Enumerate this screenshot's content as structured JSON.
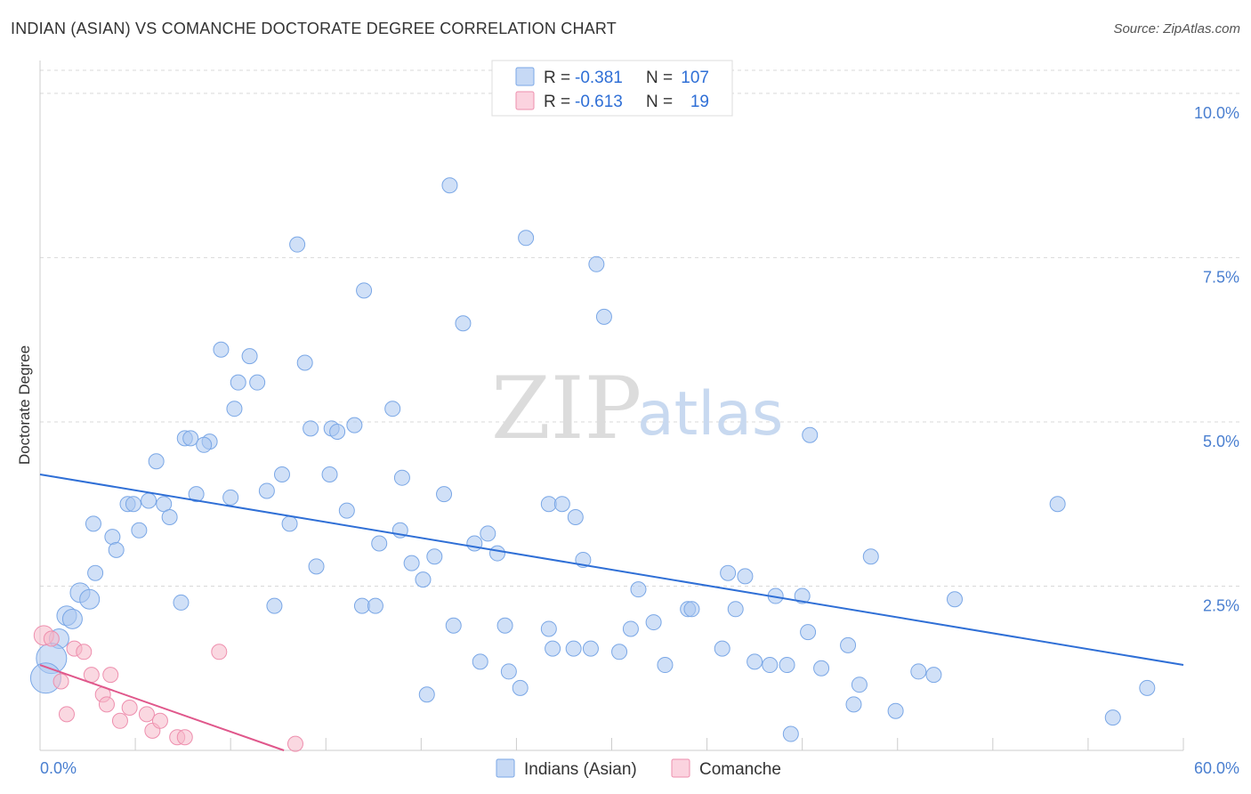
{
  "header": {
    "title": "INDIAN (ASIAN) VS COMANCHE DOCTORATE DEGREE CORRELATION CHART",
    "source": "Source: ZipAtlas.com"
  },
  "watermark": {
    "part1": "ZIP",
    "part2": "atlas"
  },
  "legend": {
    "rows": [
      {
        "r_label": "R =",
        "r_value": "-0.381",
        "n_label": "N =",
        "n_value": "107",
        "color": "#a9c6f0"
      },
      {
        "r_label": "R =",
        "r_value": "-0.613",
        "n_label": "N =",
        "n_value": "19",
        "color": "#f6b8c9"
      }
    ]
  },
  "bottom_legend": [
    {
      "label": "Indians (Asian)",
      "color": "#a9c6f0"
    },
    {
      "label": "Comanche",
      "color": "#f6b8c9"
    }
  ],
  "chart_data": {
    "type": "scatter",
    "title": "INDIAN (ASIAN) VS COMANCHE DOCTORATE DEGREE CORRELATION CHART",
    "xlabel": "",
    "ylabel": "Doctorate Degree",
    "xlim": [
      0,
      60
    ],
    "ylim": [
      0,
      10.5
    ],
    "x_tick_labels": [
      "0.0%",
      "60.0%"
    ],
    "y_ticks": [
      2.5,
      5.0,
      7.5,
      10.0
    ],
    "y_tick_labels": [
      "2.5%",
      "5.0%",
      "7.5%",
      "10.0%"
    ],
    "grid": true,
    "legend_position": "top-center",
    "series": [
      {
        "name": "Indians (Asian)",
        "color": "#7aa7e6",
        "fill": "#a9c6f0",
        "trend": {
          "x": [
            0,
            60
          ],
          "y": [
            4.2,
            1.3
          ],
          "color": "#2f6fd6"
        },
        "points": [
          [
            21.5,
            8.6
          ],
          [
            25.5,
            7.8
          ],
          [
            13.5,
            7.7
          ],
          [
            29.2,
            7.4
          ],
          [
            17.0,
            7.0
          ],
          [
            22.2,
            6.5
          ],
          [
            29.6,
            6.6
          ],
          [
            9.5,
            6.1
          ],
          [
            11.0,
            6.0
          ],
          [
            13.9,
            5.9
          ],
          [
            10.4,
            5.6
          ],
          [
            11.4,
            5.6
          ],
          [
            10.2,
            5.2
          ],
          [
            18.5,
            5.2
          ],
          [
            7.6,
            4.75
          ],
          [
            7.9,
            4.75
          ],
          [
            8.9,
            4.7
          ],
          [
            8.6,
            4.65
          ],
          [
            14.2,
            4.9
          ],
          [
            15.3,
            4.9
          ],
          [
            15.6,
            4.85
          ],
          [
            16.5,
            4.95
          ],
          [
            40.4,
            4.8
          ],
          [
            6.1,
            4.4
          ],
          [
            12.7,
            4.2
          ],
          [
            15.2,
            4.2
          ],
          [
            19.0,
            4.15
          ],
          [
            11.9,
            3.95
          ],
          [
            21.2,
            3.9
          ],
          [
            8.2,
            3.9
          ],
          [
            10.0,
            3.85
          ],
          [
            4.6,
            3.75
          ],
          [
            4.9,
            3.75
          ],
          [
            5.7,
            3.8
          ],
          [
            6.5,
            3.75
          ],
          [
            26.7,
            3.75
          ],
          [
            27.4,
            3.75
          ],
          [
            6.8,
            3.55
          ],
          [
            53.4,
            3.75
          ],
          [
            2.8,
            3.45
          ],
          [
            13.1,
            3.45
          ],
          [
            16.1,
            3.65
          ],
          [
            28.1,
            3.55
          ],
          [
            5.2,
            3.35
          ],
          [
            18.9,
            3.35
          ],
          [
            23.5,
            3.3
          ],
          [
            17.8,
            3.15
          ],
          [
            22.8,
            3.15
          ],
          [
            3.8,
            3.25
          ],
          [
            4.0,
            3.05
          ],
          [
            24.0,
            3.0
          ],
          [
            14.5,
            2.8
          ],
          [
            19.5,
            2.85
          ],
          [
            20.7,
            2.95
          ],
          [
            28.5,
            2.9
          ],
          [
            43.6,
            2.95
          ],
          [
            2.9,
            2.7
          ],
          [
            20.1,
            2.6
          ],
          [
            36.1,
            2.7
          ],
          [
            37.0,
            2.65
          ],
          [
            2.1,
            2.4
          ],
          [
            2.6,
            2.3
          ],
          [
            7.4,
            2.25
          ],
          [
            31.4,
            2.45
          ],
          [
            38.6,
            2.35
          ],
          [
            40.0,
            2.35
          ],
          [
            48.0,
            2.3
          ],
          [
            12.3,
            2.2
          ],
          [
            16.9,
            2.2
          ],
          [
            17.6,
            2.2
          ],
          [
            34.0,
            2.15
          ],
          [
            34.2,
            2.15
          ],
          [
            36.5,
            2.15
          ],
          [
            1.4,
            2.05
          ],
          [
            1.7,
            2.0
          ],
          [
            32.2,
            1.95
          ],
          [
            21.7,
            1.9
          ],
          [
            24.4,
            1.9
          ],
          [
            26.7,
            1.85
          ],
          [
            31.0,
            1.85
          ],
          [
            40.3,
            1.8
          ],
          [
            1.0,
            1.7
          ],
          [
            26.9,
            1.55
          ],
          [
            28.0,
            1.55
          ],
          [
            28.9,
            1.55
          ],
          [
            30.4,
            1.5
          ],
          [
            35.8,
            1.55
          ],
          [
            42.4,
            1.6
          ],
          [
            0.6,
            1.4
          ],
          [
            23.1,
            1.35
          ],
          [
            32.8,
            1.3
          ],
          [
            37.5,
            1.35
          ],
          [
            38.3,
            1.3
          ],
          [
            39.2,
            1.3
          ],
          [
            41.0,
            1.25
          ],
          [
            24.6,
            1.2
          ],
          [
            46.1,
            1.2
          ],
          [
            46.9,
            1.15
          ],
          [
            0.3,
            1.1
          ],
          [
            25.2,
            0.95
          ],
          [
            43.0,
            1.0
          ],
          [
            20.3,
            0.85
          ],
          [
            58.1,
            0.95
          ],
          [
            42.7,
            0.7
          ],
          [
            44.9,
            0.6
          ],
          [
            56.3,
            0.5
          ],
          [
            39.4,
            0.25
          ]
        ],
        "point_sizes": [
          "s",
          "s",
          "s",
          "s",
          "s",
          "s",
          "s",
          "s",
          "s",
          "s",
          "s",
          "s",
          "s",
          "s",
          "s",
          "s",
          "s",
          "s",
          "s",
          "s",
          "s",
          "s",
          "s",
          "s",
          "s",
          "s",
          "s",
          "s",
          "s",
          "s",
          "s",
          "s",
          "s",
          "s",
          "s",
          "s",
          "s",
          "s",
          "s",
          "s",
          "s",
          "s",
          "s",
          "s",
          "s",
          "s",
          "s",
          "s",
          "s",
          "s",
          "s",
          "s",
          "s",
          "s",
          "s",
          "s",
          "s",
          "s",
          "s",
          "s",
          "m",
          "m",
          "s",
          "s",
          "s",
          "s",
          "s",
          "s",
          "s",
          "s",
          "s",
          "s",
          "s",
          "m",
          "m",
          "s",
          "s",
          "s",
          "s",
          "s",
          "s",
          "m",
          "s",
          "s",
          "s",
          "s",
          "s",
          "s",
          "l",
          "s",
          "s",
          "s",
          "s",
          "s",
          "s",
          "s",
          "s",
          "s",
          "l",
          "s",
          "s",
          "s",
          "s",
          "s",
          "s",
          "s",
          "s"
        ]
      },
      {
        "name": "Comanche",
        "color": "#ee8fae",
        "fill": "#f6b8c9",
        "trend": {
          "x": [
            0,
            12.8
          ],
          "y": [
            1.3,
            0.0
          ],
          "color": "#e0578b"
        },
        "points": [
          [
            0.2,
            1.75
          ],
          [
            0.6,
            1.7
          ],
          [
            1.1,
            1.05
          ],
          [
            1.4,
            0.55
          ],
          [
            1.8,
            1.55
          ],
          [
            2.3,
            1.5
          ],
          [
            2.7,
            1.15
          ],
          [
            3.3,
            0.85
          ],
          [
            3.5,
            0.7
          ],
          [
            3.7,
            1.15
          ],
          [
            4.2,
            0.45
          ],
          [
            4.7,
            0.65
          ],
          [
            5.6,
            0.55
          ],
          [
            5.9,
            0.3
          ],
          [
            6.3,
            0.45
          ],
          [
            7.2,
            0.2
          ],
          [
            7.6,
            0.2
          ],
          [
            9.4,
            1.5
          ],
          [
            13.4,
            0.1
          ]
        ],
        "point_sizes": [
          "m",
          "s",
          "s",
          "s",
          "s",
          "s",
          "s",
          "s",
          "s",
          "s",
          "s",
          "s",
          "s",
          "s",
          "s",
          "s",
          "s",
          "s",
          "s"
        ]
      }
    ]
  }
}
